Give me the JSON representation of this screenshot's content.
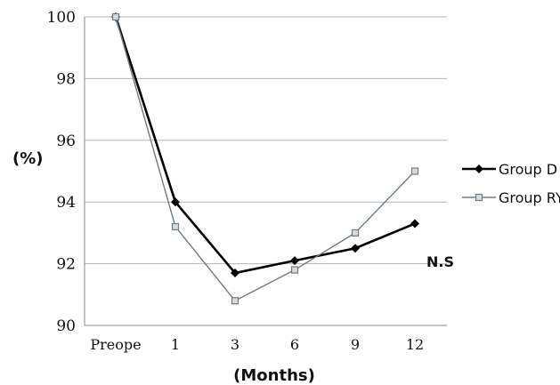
{
  "chart_data": {
    "type": "line",
    "categories": [
      "Preope",
      "1",
      "3",
      "6",
      "9",
      "12"
    ],
    "series": [
      {
        "name": "Group D",
        "values": [
          100,
          94,
          91.7,
          92.1,
          92.5,
          93.3
        ],
        "color": "#000000",
        "marker": "diamond"
      },
      {
        "name": "Group RY",
        "values": [
          100,
          93.2,
          90.8,
          91.8,
          93,
          95
        ],
        "color": "#6e7b85",
        "marker": "square"
      }
    ],
    "ylabel": "(%)",
    "xlabel": "(Months)",
    "ylim": [
      90,
      100
    ],
    "yticks": [
      90,
      92,
      94,
      96,
      98,
      100
    ],
    "grid": true,
    "legend": "right",
    "annotation": "N.S"
  }
}
